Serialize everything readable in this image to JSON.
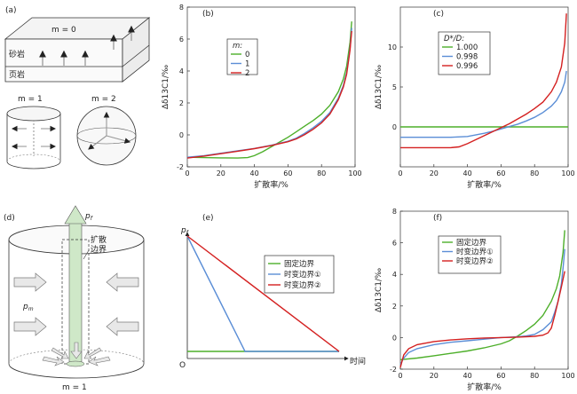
{
  "colors": {
    "green": "#4daf2a",
    "blue": "#5b8ed6",
    "red": "#d42020",
    "arrow": "#b8b8b8",
    "column": "#cfe8c8"
  },
  "panel_a": {
    "label": "(a)",
    "m0": "m = 0",
    "sandstone": "砂岩",
    "shale": "页岩",
    "m1": "m = 1",
    "m2": "m = 2"
  },
  "panel_d": {
    "label": "(d)",
    "pf": "p",
    "pf_sub": "f",
    "pm": "p",
    "pm_sub": "m",
    "boundary_l1": "扩散",
    "boundary_l2": "边界",
    "m1": "m = 1"
  },
  "panel_e": {
    "label": "(e)",
    "yaxis_label": "p",
    "yaxis_sub": "f",
    "origin": "O",
    "xaxis_label": "时间",
    "legend": [
      "固定边界",
      "时变边界①",
      "时变边界②"
    ]
  },
  "chart_data": [
    {
      "id": "b",
      "type": "line",
      "panel_label": "(b)",
      "xlabel": "扩散率/%",
      "ylabel": "Δδ13C1/‰",
      "xlim": [
        0,
        100
      ],
      "ylim": [
        -2,
        8
      ],
      "xticks": [
        0,
        20,
        40,
        60,
        80,
        100
      ],
      "yticks": [
        -2,
        0,
        2,
        4,
        6,
        8
      ],
      "legend_title": "m:",
      "series": [
        {
          "name": "0",
          "color": "green",
          "x": [
            0,
            10,
            20,
            30,
            36,
            40,
            45,
            50,
            55,
            60,
            65,
            70,
            75,
            80,
            85,
            90,
            93,
            95,
            97,
            98
          ],
          "y": [
            -1.4,
            -1.42,
            -1.44,
            -1.45,
            -1.42,
            -1.3,
            -1.05,
            -0.75,
            -0.45,
            -0.15,
            0.2,
            0.55,
            0.9,
            1.3,
            1.85,
            2.7,
            3.5,
            4.3,
            5.8,
            7.1
          ]
        },
        {
          "name": "1",
          "color": "blue",
          "x": [
            0,
            10,
            20,
            30,
            40,
            50,
            60,
            65,
            70,
            75,
            80,
            85,
            90,
            93,
            95,
            97,
            98
          ],
          "y": [
            -1.4,
            -1.3,
            -1.15,
            -1.0,
            -0.85,
            -0.65,
            -0.4,
            -0.2,
            0.1,
            0.45,
            0.85,
            1.4,
            2.3,
            3.1,
            3.9,
            5.4,
            6.7
          ]
        },
        {
          "name": "2",
          "color": "red",
          "x": [
            0,
            10,
            20,
            30,
            40,
            50,
            60,
            65,
            70,
            75,
            80,
            85,
            90,
            93,
            95,
            97,
            98
          ],
          "y": [
            -1.45,
            -1.33,
            -1.18,
            -1.02,
            -0.86,
            -0.67,
            -0.43,
            -0.25,
            0.02,
            0.35,
            0.75,
            1.3,
            2.2,
            3.0,
            3.8,
            5.3,
            6.5
          ]
        }
      ]
    },
    {
      "id": "c",
      "type": "line",
      "panel_label": "(c)",
      "xlabel": "扩散率/%",
      "ylabel": "Δδ13C1/‰",
      "xlim": [
        0,
        100
      ],
      "ylim": [
        -5,
        15
      ],
      "xticks": [
        0,
        20,
        40,
        60,
        80,
        100
      ],
      "yticks": [
        0,
        5,
        10
      ],
      "legend_title": "D*/D:",
      "series": [
        {
          "name": "1.000",
          "color": "green",
          "x": [
            0,
            100
          ],
          "y": [
            0,
            0
          ]
        },
        {
          "name": "0.998",
          "color": "blue",
          "x": [
            0,
            10,
            20,
            30,
            40,
            50,
            55,
            60,
            65,
            70,
            75,
            80,
            85,
            90,
            93,
            96,
            98,
            99
          ],
          "y": [
            -1.3,
            -1.3,
            -1.3,
            -1.3,
            -1.2,
            -0.8,
            -0.55,
            -0.25,
            0.05,
            0.35,
            0.75,
            1.2,
            1.8,
            2.6,
            3.3,
            4.4,
            5.6,
            7.0
          ]
        },
        {
          "name": "0.996",
          "color": "red",
          "x": [
            0,
            10,
            20,
            30,
            35,
            40,
            45,
            50,
            55,
            60,
            65,
            70,
            75,
            80,
            85,
            90,
            93,
            96,
            98,
            99
          ],
          "y": [
            -2.6,
            -2.6,
            -2.6,
            -2.6,
            -2.5,
            -2.1,
            -1.6,
            -1.1,
            -0.6,
            -0.1,
            0.4,
            1.0,
            1.6,
            2.3,
            3.1,
            4.4,
            5.6,
            7.5,
            10.5,
            14.2
          ]
        }
      ]
    },
    {
      "id": "f",
      "type": "line",
      "panel_label": "(f)",
      "xlabel": "扩散率/%",
      "ylabel": "Δδ13C1/‰",
      "xlim": [
        0,
        100
      ],
      "ylim": [
        -2,
        8
      ],
      "xticks": [
        0,
        20,
        40,
        60,
        80,
        100
      ],
      "yticks": [
        -2,
        0,
        2,
        4,
        6,
        8
      ],
      "series": [
        {
          "name": "固定边界",
          "color": "green",
          "x": [
            0,
            10,
            20,
            30,
            40,
            50,
            60,
            65,
            70,
            75,
            80,
            85,
            90,
            93,
            95,
            97,
            98
          ],
          "y": [
            -1.4,
            -1.3,
            -1.15,
            -1.0,
            -0.85,
            -0.65,
            -0.4,
            -0.2,
            0.1,
            0.45,
            0.85,
            1.4,
            2.3,
            3.1,
            3.9,
            5.4,
            6.8
          ]
        },
        {
          "name": "时变边界①",
          "color": "blue",
          "x": [
            0,
            2,
            5,
            10,
            20,
            30,
            40,
            50,
            60,
            70,
            75,
            80,
            85,
            90,
            92,
            94,
            96,
            97,
            98
          ],
          "y": [
            -1.7,
            -1.3,
            -0.95,
            -0.7,
            -0.45,
            -0.3,
            -0.2,
            -0.1,
            0.0,
            0.05,
            0.1,
            0.2,
            0.5,
            1.0,
            1.6,
            2.3,
            3.4,
            4.4,
            5.6
          ]
        },
        {
          "name": "时变边界②",
          "color": "red",
          "x": [
            0,
            2,
            5,
            10,
            20,
            30,
            40,
            50,
            60,
            70,
            80,
            85,
            88,
            90,
            92,
            94,
            96,
            98
          ],
          "y": [
            -1.9,
            -1.1,
            -0.7,
            -0.45,
            -0.25,
            -0.15,
            -0.08,
            -0.03,
            0.0,
            0.03,
            0.08,
            0.15,
            0.3,
            0.6,
            1.4,
            2.3,
            3.2,
            4.2
          ]
        }
      ]
    }
  ]
}
